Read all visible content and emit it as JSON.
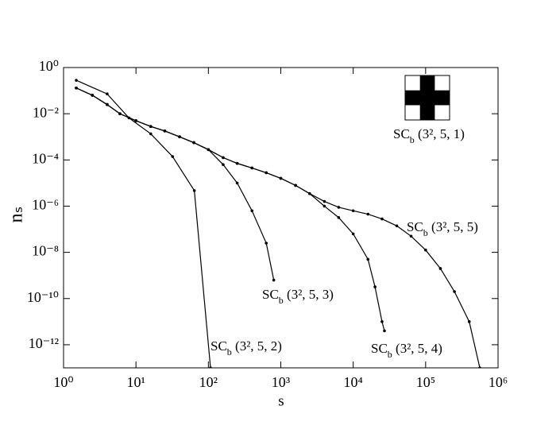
{
  "chart_data": {
    "type": "line",
    "x_label": "s",
    "y_label": "nₛ",
    "log_x": true,
    "log_y": true,
    "xlim": [
      1,
      1000000
    ],
    "ylim": [
      1e-13,
      1
    ],
    "xticks": [
      {
        "value": 1,
        "label": "10⁰"
      },
      {
        "value": 10,
        "label": "10¹"
      },
      {
        "value": 100,
        "label": "10²"
      },
      {
        "value": 1000,
        "label": "10³"
      },
      {
        "value": 10000,
        "label": "10⁴"
      },
      {
        "value": 100000,
        "label": "10⁵"
      },
      {
        "value": 1000000,
        "label": "10⁶"
      }
    ],
    "yticks": [
      {
        "value": 1,
        "label": "10⁰"
      },
      {
        "value": 0.01,
        "label": "10⁻²"
      },
      {
        "value": 0.0001,
        "label": "10⁻⁴"
      },
      {
        "value": 1e-06,
        "label": "10⁻⁶"
      },
      {
        "value": 1e-08,
        "label": "10⁻⁸"
      },
      {
        "value": 1e-10,
        "label": "10⁻¹⁰"
      },
      {
        "value": 1e-12,
        "label": "10⁻¹²"
      }
    ],
    "annotation": "SCb (3², 5, 1)",
    "series": [
      {
        "name": "SCb (3², 5, 2)",
        "color": "#000000",
        "x": [
          1.5,
          4,
          8,
          16,
          32,
          64,
          107
        ],
        "values": [
          0.28,
          0.072,
          0.0066,
          0.00135,
          0.00014,
          4.7e-06,
          1e-13
        ]
      },
      {
        "name": "SCb (3², 5, 3)",
        "color": "#000000",
        "x": [
          1.5,
          2.5,
          4,
          6,
          10,
          16,
          25,
          40,
          63,
          100,
          160,
          250,
          400,
          630,
          800
        ],
        "values": [
          0.13,
          0.063,
          0.025,
          0.01,
          0.005,
          0.0028,
          0.0018,
          0.001,
          0.00056,
          0.00028,
          6.3e-05,
          1e-05,
          6.3e-07,
          2.5e-08,
          6.3e-10
        ]
      },
      {
        "name": "SCb (3², 5, 4)",
        "color": "#000000",
        "x": [
          1.5,
          2.5,
          4,
          6,
          10,
          16,
          25,
          40,
          63,
          100,
          160,
          250,
          400,
          630,
          1000,
          1600,
          2500,
          4000,
          6300,
          10000,
          16000,
          20000,
          25000,
          27000
        ],
        "values": [
          0.13,
          0.063,
          0.025,
          0.01,
          0.005,
          0.0028,
          0.0018,
          0.001,
          0.00056,
          0.00028,
          0.000126,
          7.1e-05,
          4.5e-05,
          2.8e-05,
          1.6e-05,
          7.9e-06,
          3.5e-06,
          1e-06,
          3.2e-07,
          6.3e-08,
          5e-09,
          3.2e-10,
          1e-11,
          4e-12
        ]
      },
      {
        "name": "SCb (3², 5, 5)",
        "color": "#000000",
        "x": [
          1.5,
          2.5,
          4,
          6,
          10,
          16,
          25,
          40,
          63,
          100,
          160,
          250,
          400,
          630,
          1000,
          1600,
          2500,
          4000,
          6300,
          10000,
          16000,
          25000,
          40000,
          63000,
          100000,
          160000,
          250000,
          400000,
          560000
        ],
        "values": [
          0.13,
          0.063,
          0.025,
          0.01,
          0.005,
          0.0028,
          0.0018,
          0.001,
          0.00056,
          0.00028,
          0.000126,
          7.1e-05,
          4.5e-05,
          2.8e-05,
          1.6e-05,
          7.9e-06,
          3.5e-06,
          1.6e-06,
          8.9e-07,
          6.3e-07,
          4.5e-07,
          2.8e-07,
          1.4e-07,
          5e-08,
          1.26e-08,
          2e-09,
          2e-10,
          1e-11,
          1e-13
        ]
      }
    ]
  }
}
